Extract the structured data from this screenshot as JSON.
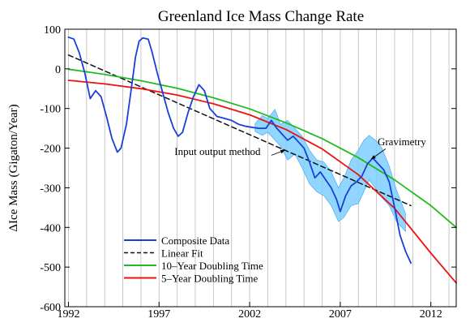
{
  "chart_data": {
    "type": "line",
    "title": "Greenland Ice Mass Change Rate",
    "xlabel": "",
    "ylabel": "ΔIce Mass (Gigaton/Year)",
    "xlim": [
      1991.8,
      2013.4
    ],
    "ylim": [
      -600,
      100
    ],
    "xticks": [
      1992,
      1997,
      2002,
      2007,
      2012
    ],
    "yticks": [
      100,
      0,
      -100,
      -200,
      -300,
      -400,
      -500,
      -600
    ],
    "yticks_extra_label": "-600",
    "vertical_grid_step_years": 1,
    "grid_color": "#bbbbbb",
    "legend_position": "bottom-left",
    "series": [
      {
        "name": "Composite Data",
        "color": "#1a3fd6",
        "style": "solid",
        "points": [
          [
            1992.0,
            80
          ],
          [
            1992.3,
            75
          ],
          [
            1992.6,
            40
          ],
          [
            1992.9,
            -10
          ],
          [
            1993.2,
            -75
          ],
          [
            1993.5,
            -55
          ],
          [
            1993.8,
            -70
          ],
          [
            1994.1,
            -120
          ],
          [
            1994.4,
            -175
          ],
          [
            1994.7,
            -210
          ],
          [
            1994.9,
            -200
          ],
          [
            1995.2,
            -140
          ],
          [
            1995.5,
            -40
          ],
          [
            1995.7,
            30
          ],
          [
            1995.9,
            70
          ],
          [
            1996.1,
            78
          ],
          [
            1996.4,
            75
          ],
          [
            1996.6,
            45
          ],
          [
            1996.9,
            -10
          ],
          [
            1997.2,
            -60
          ],
          [
            1997.5,
            -110
          ],
          [
            1997.8,
            -150
          ],
          [
            1998.05,
            -170
          ],
          [
            1998.3,
            -160
          ],
          [
            1998.6,
            -110
          ],
          [
            1998.9,
            -70
          ],
          [
            1999.2,
            -40
          ],
          [
            1999.5,
            -55
          ],
          [
            1999.8,
            -100
          ],
          [
            2000.2,
            -120
          ],
          [
            2000.6,
            -125
          ],
          [
            2001.0,
            -130
          ],
          [
            2001.4,
            -140
          ],
          [
            2001.8,
            -145
          ],
          [
            2002.2,
            -148
          ],
          [
            2002.5,
            -150
          ],
          [
            2002.9,
            -150
          ],
          [
            2003.2,
            -130
          ],
          [
            2003.5,
            -150
          ],
          [
            2003.8,
            -165
          ],
          [
            2004.1,
            -180
          ],
          [
            2004.4,
            -170
          ],
          [
            2004.7,
            -185
          ],
          [
            2005.0,
            -200
          ],
          [
            2005.3,
            -235
          ],
          [
            2005.6,
            -275
          ],
          [
            2005.9,
            -260
          ],
          [
            2006.2,
            -280
          ],
          [
            2006.5,
            -300
          ],
          [
            2006.8,
            -330
          ],
          [
            2007.0,
            -360
          ],
          [
            2007.3,
            -320
          ],
          [
            2007.6,
            -295
          ],
          [
            2007.9,
            -285
          ],
          [
            2008.2,
            -270
          ],
          [
            2008.5,
            -240
          ],
          [
            2008.8,
            -225
          ],
          [
            2009.1,
            -240
          ],
          [
            2009.4,
            -255
          ],
          [
            2009.7,
            -285
          ],
          [
            2010.0,
            -350
          ],
          [
            2010.3,
            -420
          ],
          [
            2010.6,
            -460
          ],
          [
            2010.9,
            -490
          ]
        ]
      },
      {
        "name": "Linear Fit",
        "color": "#111111",
        "style": "dashed",
        "points": [
          [
            1992.0,
            35
          ],
          [
            2010.9,
            -345
          ]
        ]
      },
      {
        "name": "10–Year Doubling Time",
        "color": "#22bb22",
        "style": "solid",
        "points": [
          [
            1992.0,
            -1
          ],
          [
            1994.0,
            -14
          ],
          [
            1996.0,
            -30
          ],
          [
            1998.0,
            -49
          ],
          [
            2000.0,
            -73
          ],
          [
            2002.0,
            -101
          ],
          [
            2004.0,
            -136
          ],
          [
            2006.0,
            -176
          ],
          [
            2008.0,
            -224
          ],
          [
            2010.0,
            -280
          ],
          [
            2012.0,
            -345
          ],
          [
            2013.4,
            -400
          ]
        ]
      },
      {
        "name": "5–Year Doubling Time",
        "color": "#ee1111",
        "style": "solid",
        "points": [
          [
            1992.0,
            -29
          ],
          [
            1994.0,
            -38
          ],
          [
            1996.0,
            -50
          ],
          [
            1998.0,
            -66
          ],
          [
            2000.0,
            -88
          ],
          [
            2002.0,
            -116
          ],
          [
            2004.0,
            -153
          ],
          [
            2006.0,
            -202
          ],
          [
            2008.0,
            -267
          ],
          [
            2010.0,
            -352
          ],
          [
            2012.0,
            -465
          ],
          [
            2013.4,
            -540
          ]
        ]
      }
    ],
    "gravimetry_band": {
      "color": "#7ccfff",
      "upper": [
        [
          2002.3,
          -138
        ],
        [
          2002.7,
          -118
        ],
        [
          2003.0,
          -125
        ],
        [
          2003.4,
          -102
        ],
        [
          2003.7,
          -140
        ],
        [
          2004.1,
          -130
        ],
        [
          2004.5,
          -150
        ],
        [
          2004.9,
          -170
        ],
        [
          2005.3,
          -205
        ],
        [
          2005.7,
          -230
        ],
        [
          2006.1,
          -235
        ],
        [
          2006.5,
          -260
        ],
        [
          2006.9,
          -300
        ],
        [
          2007.2,
          -275
        ],
        [
          2007.6,
          -230
        ],
        [
          2008.0,
          -205
        ],
        [
          2008.3,
          -180
        ],
        [
          2008.6,
          -168
        ],
        [
          2009.0,
          -182
        ],
        [
          2009.3,
          -200
        ],
        [
          2009.7,
          -245
        ],
        [
          2010.1,
          -305
        ],
        [
          2010.6,
          -365
        ]
      ],
      "lower": [
        [
          2002.3,
          -158
        ],
        [
          2002.7,
          -168
        ],
        [
          2003.0,
          -160
        ],
        [
          2003.4,
          -180
        ],
        [
          2003.7,
          -195
        ],
        [
          2004.1,
          -230
        ],
        [
          2004.5,
          -215
        ],
        [
          2004.9,
          -250
        ],
        [
          2005.3,
          -290
        ],
        [
          2005.7,
          -310
        ],
        [
          2006.1,
          -320
        ],
        [
          2006.5,
          -345
        ],
        [
          2006.9,
          -385
        ],
        [
          2007.2,
          -375
        ],
        [
          2007.6,
          -345
        ],
        [
          2008.0,
          -340
        ],
        [
          2008.3,
          -310
        ],
        [
          2008.6,
          -280
        ],
        [
          2009.0,
          -305
        ],
        [
          2009.3,
          -325
        ],
        [
          2009.7,
          -345
        ],
        [
          2010.1,
          -385
        ],
        [
          2010.6,
          -410
        ]
      ]
    },
    "annotations": [
      {
        "text": "Input output method",
        "x": 1997.85,
        "y": -217,
        "anchor": "start",
        "arrow_to": [
          2003.95,
          -205
        ],
        "arrow_from": [
          2003.2,
          -218
        ]
      },
      {
        "text": "Gravimetry",
        "x": 2010.4,
        "y": -193,
        "anchor": "middle",
        "arrow_to": [
          2008.7,
          -228
        ],
        "arrow_from": [
          2009.5,
          -202
        ]
      }
    ]
  }
}
